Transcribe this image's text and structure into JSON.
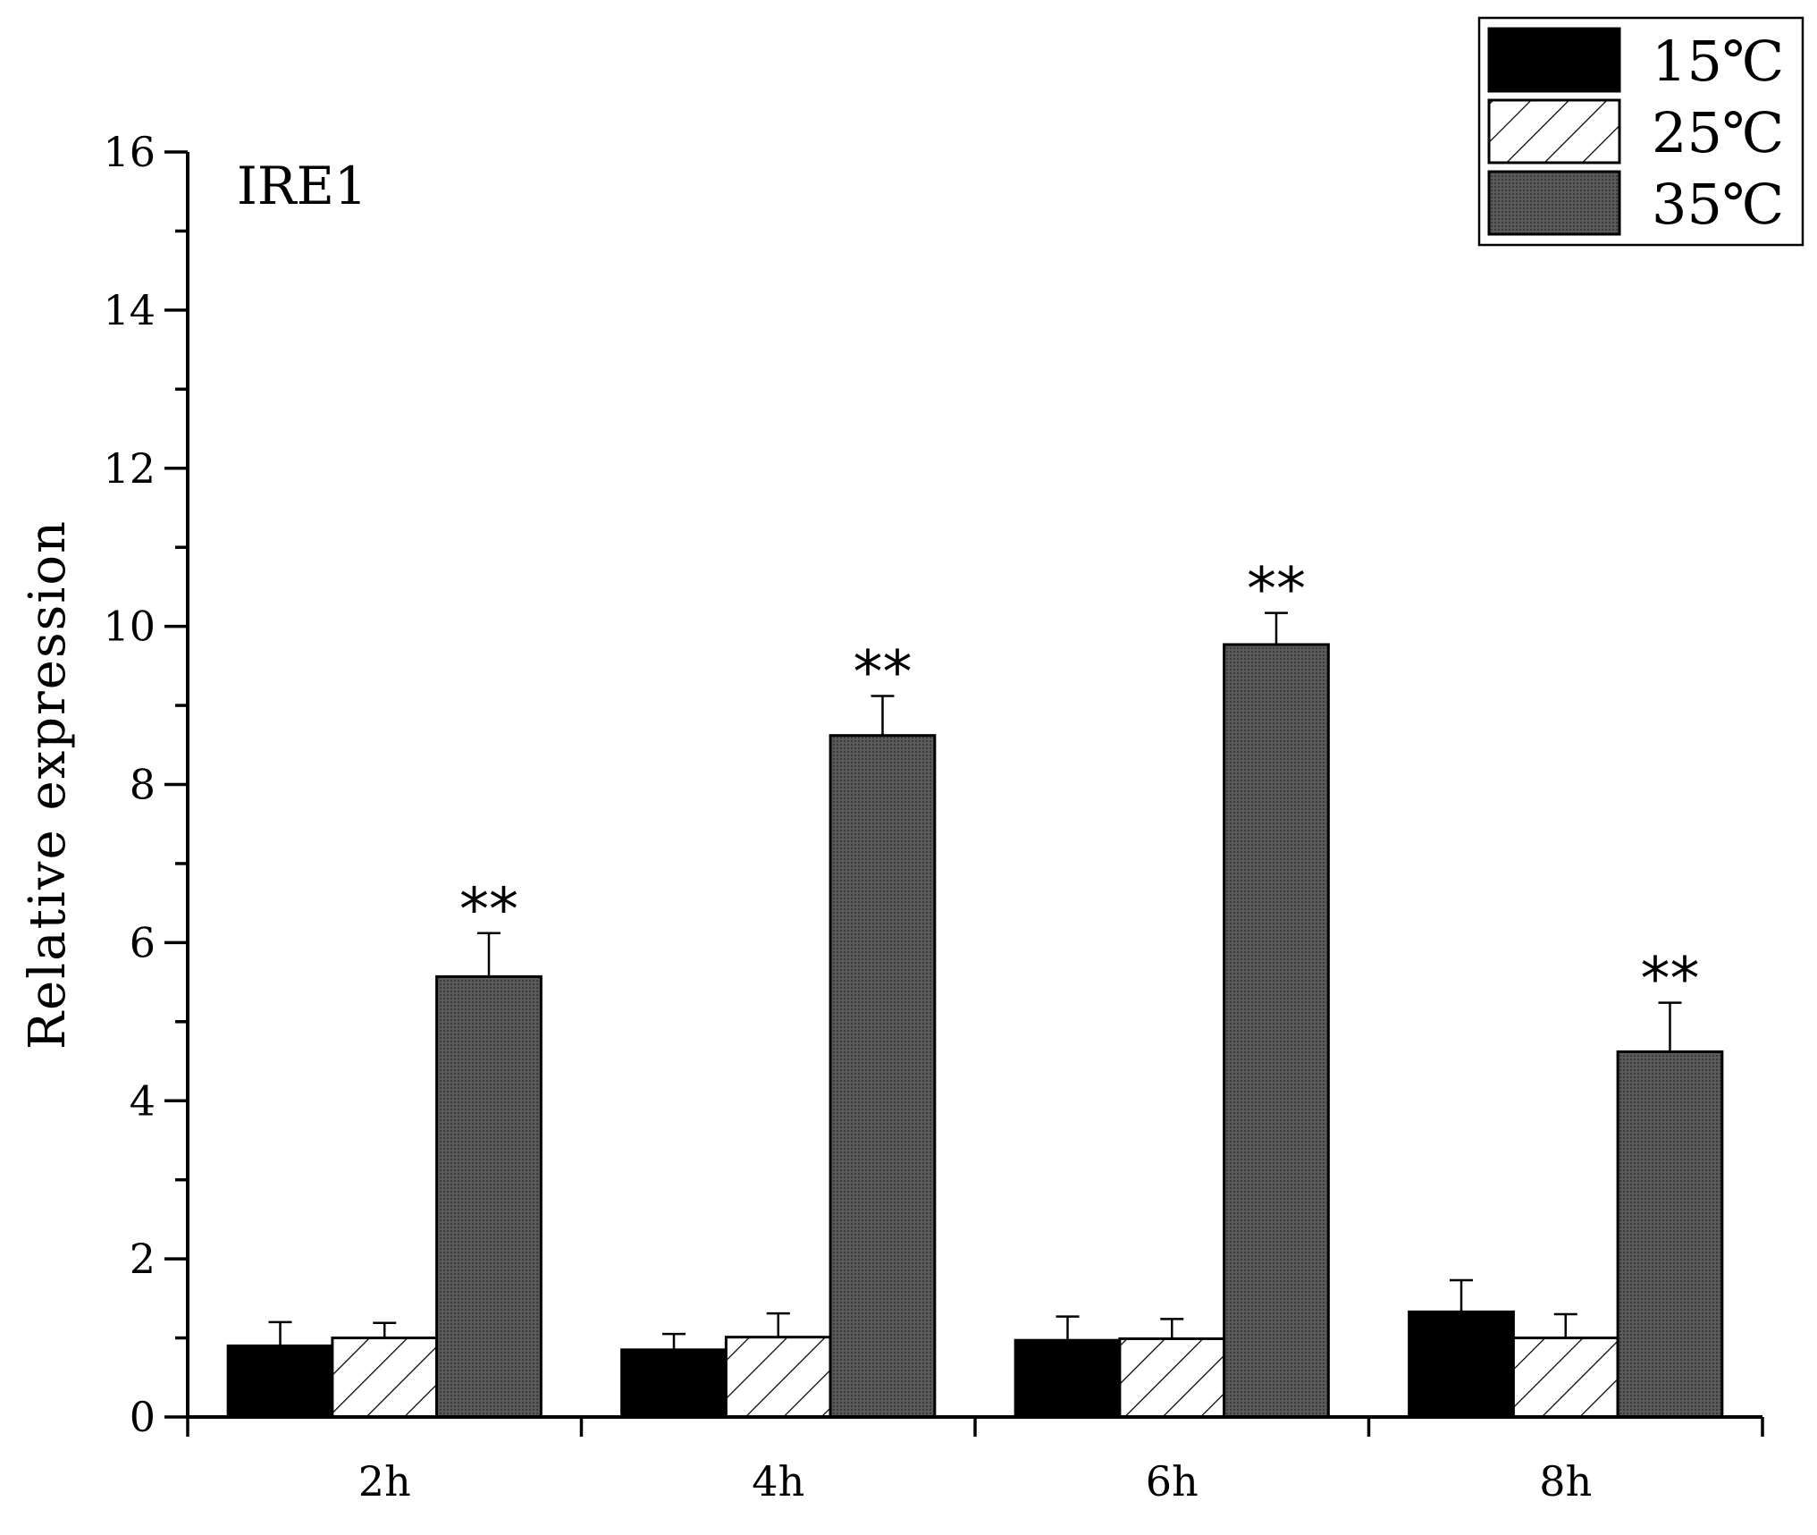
{
  "chart_data": {
    "type": "bar",
    "annotation": "IRE1",
    "xlabel": "",
    "ylabel": "Relative expression",
    "ylim": [
      0,
      16
    ],
    "yticks": [
      0,
      2,
      4,
      6,
      8,
      10,
      12,
      14,
      16
    ],
    "categories": [
      "2h",
      "4h",
      "6h",
      "8h"
    ],
    "grid": false,
    "legend_position": "top-right",
    "series": [
      {
        "name": "15℃",
        "fill": "solid-black",
        "color": "#000000",
        "values": [
          0.9,
          0.85,
          0.97,
          1.33
        ],
        "errors": [
          0.3,
          0.2,
          0.3,
          0.4
        ]
      },
      {
        "name": "25℃",
        "fill": "hatched",
        "color": "#ffffff",
        "values": [
          1.0,
          1.01,
          0.99,
          1.0
        ],
        "errors": [
          0.19,
          0.3,
          0.25,
          0.3
        ]
      },
      {
        "name": "35℃",
        "fill": "dark-gray-dotted",
        "color": "#555555",
        "values": [
          5.57,
          8.62,
          9.77,
          4.62
        ],
        "errors": [
          0.55,
          0.5,
          0.4,
          0.62
        ]
      }
    ],
    "significance": [
      {
        "category": "2h",
        "series": "35℃",
        "label": "**"
      },
      {
        "category": "4h",
        "series": "35℃",
        "label": "**"
      },
      {
        "category": "6h",
        "series": "35℃",
        "label": "**"
      },
      {
        "category": "8h",
        "series": "35℃",
        "label": "**"
      }
    ]
  }
}
